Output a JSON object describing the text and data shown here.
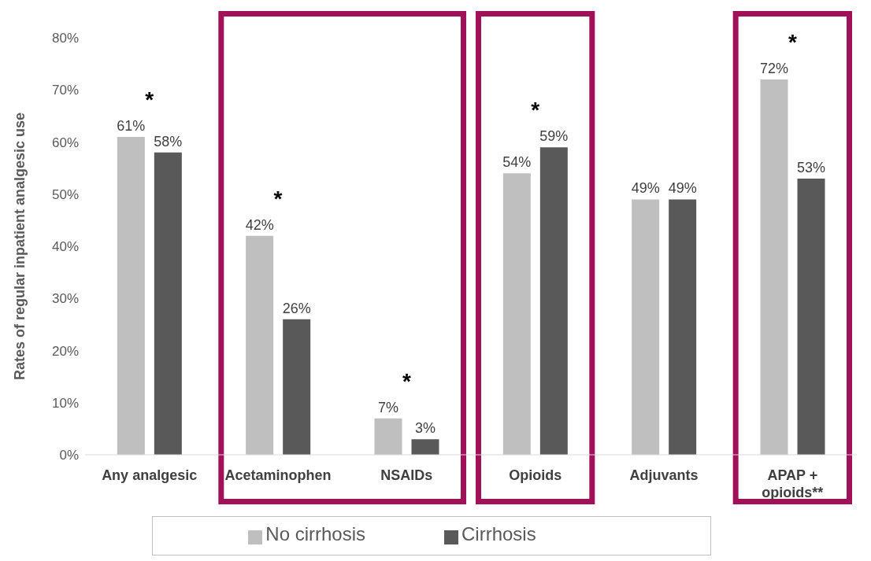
{
  "chart_data": {
    "type": "bar",
    "ylabel": "Rates of regular inpatient analgesic use",
    "categories": [
      "Any analgesic",
      "Acetaminophen",
      "NSAIDs",
      "Opioids",
      "Adjuvants",
      "APAP + opioids**"
    ],
    "series": [
      {
        "name": "No cirrhosis",
        "color": "#bfbfbf",
        "values": [
          61,
          42,
          7,
          54,
          49,
          72
        ],
        "value_labels": [
          "61%",
          "42%",
          "7%",
          "54%",
          "49%",
          "72%"
        ]
      },
      {
        "name": "Cirrhosis",
        "color": "#595959",
        "values": [
          58,
          26,
          3,
          59,
          49,
          53
        ],
        "value_labels": [
          "58%",
          "26%",
          "3%",
          "59%",
          "49%",
          "53%"
        ]
      }
    ],
    "ylim": [
      0,
      80
    ],
    "yticks": [
      {
        "value": 0,
        "label": "0%"
      },
      {
        "value": 10,
        "label": "10%"
      },
      {
        "value": 20,
        "label": "20%"
      },
      {
        "value": 30,
        "label": "30%"
      },
      {
        "value": 40,
        "label": "40%"
      },
      {
        "value": 50,
        "label": "50%"
      },
      {
        "value": 60,
        "label": "60%"
      },
      {
        "value": 70,
        "label": "70%"
      },
      {
        "value": 80,
        "label": "80%"
      }
    ],
    "grid": false,
    "legend": "bottom",
    "bands": [
      {
        "axis": "x",
        "from": "Acetaminophen",
        "to": "NSAIDs",
        "color": "#a0115a"
      },
      {
        "axis": "x",
        "from": "Opioids",
        "to": "Opioids",
        "color": "#a0115a"
      },
      {
        "axis": "x",
        "from": "APAP + opioids**",
        "to": "APAP + opioids**",
        "color": "#a0115a"
      }
    ],
    "annotations": [
      "*",
      "*",
      "*",
      "*",
      "*"
    ]
  }
}
